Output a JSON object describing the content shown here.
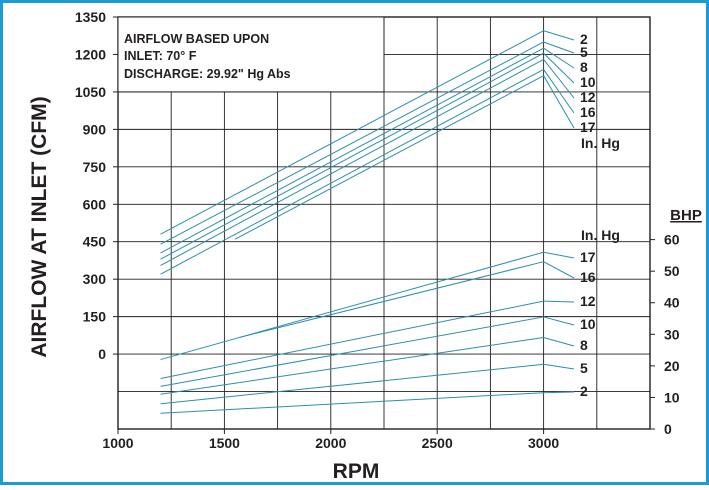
{
  "colors": {
    "frame": "#1a9bd6",
    "grid": "#231f20",
    "series": "#2b8fae",
    "text": "#231f20"
  },
  "chart_data": {
    "type": "line",
    "xlabel": "RPM",
    "ylabel": "AIRFLOW AT INLET (CFM)",
    "y2label": "BHP",
    "xlim": [
      1000,
      3500
    ],
    "x_ticks": [
      "1000",
      "1500",
      "2000",
      "2500",
      "3000"
    ],
    "ylim": [
      -300,
      1350
    ],
    "y_ticks": [
      "1350",
      "1200",
      "1050",
      "900",
      "750",
      "600",
      "450",
      "300",
      "150",
      "0"
    ],
    "y2lim": [
      0,
      60
    ],
    "y2_ticks": [
      "60",
      "50",
      "40",
      "30",
      "20",
      "10",
      "0"
    ],
    "grid": true,
    "annotation": [
      "AIRFLOW BASED UPON",
      "INLET:  70° F",
      "DISCHARGE:  29.92\" Hg Abs"
    ],
    "airflow_unit_label": "In. Hg",
    "bhp_unit_label": "In. Hg",
    "airflow_series": [
      {
        "name": "2",
        "x": [
          1200,
          3000
        ],
        "y": [
          480,
          1295
        ]
      },
      {
        "name": "5",
        "x": [
          1200,
          3000
        ],
        "y": [
          440,
          1250
        ]
      },
      {
        "name": "8",
        "x": [
          1200,
          3000
        ],
        "y": [
          405,
          1225
        ]
      },
      {
        "name": "10",
        "x": [
          1200,
          3000
        ],
        "y": [
          380,
          1205
        ]
      },
      {
        "name": "12",
        "x": [
          1200,
          3000
        ],
        "y": [
          355,
          1180
        ]
      },
      {
        "name": "16",
        "x": [
          1200,
          3000
        ],
        "y": [
          320,
          1140
        ]
      },
      {
        "name": "17",
        "x": [
          1550,
          3000
        ],
        "y": [
          460,
          1115
        ]
      }
    ],
    "bhp_series": [
      {
        "name": "17",
        "x": [
          1200,
          3000
        ],
        "y": [
          22,
          56
        ]
      },
      {
        "name": "16",
        "x": [
          1570,
          3000
        ],
        "y": [
          29,
          53
        ]
      },
      {
        "name": "12",
        "x": [
          1200,
          3000
        ],
        "y": [
          16,
          40.5
        ]
      },
      {
        "name": "10",
        "x": [
          1200,
          3000
        ],
        "y": [
          13.5,
          35.5
        ]
      },
      {
        "name": "8",
        "x": [
          1200,
          3000
        ],
        "y": [
          11,
          29
        ]
      },
      {
        "name": "5",
        "x": [
          1200,
          3000
        ],
        "y": [
          8,
          20.5
        ]
      },
      {
        "name": "2",
        "x": [
          1200,
          3000
        ],
        "y": [
          5,
          11.5
        ]
      }
    ]
  }
}
